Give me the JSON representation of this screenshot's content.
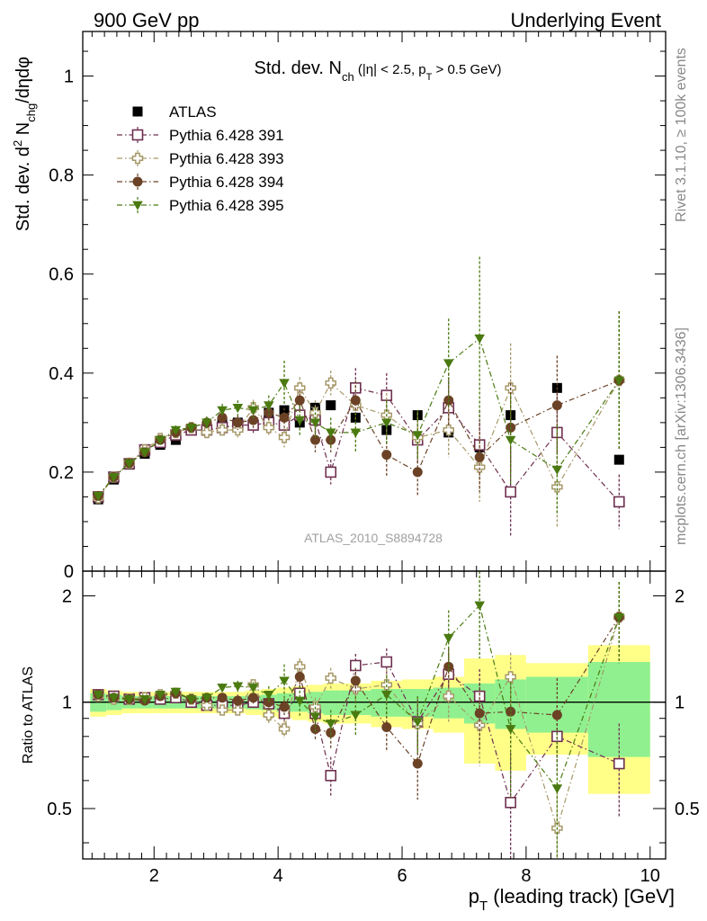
{
  "header": {
    "left": "900 GeV pp",
    "right": "Underlying Event"
  },
  "side_labels": {
    "rivet": "Rivet 3.1.10, ≥ 100k events",
    "mcplots": "mcplots.cern.ch [arXiv:1306.3436]"
  },
  "watermark": "ATLAS_2010_S8894728",
  "colors": {
    "ATLAS": "#000000",
    "pythia391": "#6e3050",
    "pythia393": "#a69868",
    "pythia394": "#6b4226",
    "pythia395": "#4a7a10",
    "band_inner": "#90f090",
    "band_outer": "#ffff88"
  },
  "chart_data": [
    {
      "type": "scatter",
      "panel": "main",
      "title": "Std. dev. N_ch (|η| < 2.5, p_T > 0.5 GeV)",
      "title_parts": {
        "base": "Std. dev. N",
        "sub": "ch",
        "cond1": " (|η| < 2.5, p",
        "sub2": "T",
        "cond2": " > 0.5 GeV)"
      },
      "ylabel": "Std. dev. d² N_chg/dηdφ",
      "ylabel_parts": {
        "a": "Std. dev. d",
        "sup": "2",
        "b": " N",
        "sub": "chg",
        "c": "/dηdφ"
      },
      "xlim": [
        0.85,
        10.25
      ],
      "ylim": [
        0,
        1.09
      ],
      "yticks": [
        0,
        0.2,
        0.4,
        0.6,
        0.8,
        1
      ],
      "ytick_labels": [
        "0",
        "0.2",
        "0.4",
        "0.6",
        "0.8",
        "1"
      ],
      "grid": false,
      "legend_position": "top-left",
      "x": [
        1.1,
        1.35,
        1.6,
        1.85,
        2.1,
        2.35,
        2.6,
        2.85,
        3.1,
        3.35,
        3.6,
        3.85,
        4.1,
        4.35,
        4.6,
        4.85,
        5.25,
        5.75,
        6.25,
        6.75,
        7.25,
        7.75,
        8.5,
        9.5
      ],
      "series": [
        {
          "name": "ATLAS",
          "key": "ATLAS",
          "marker": "filled-square",
          "values": [
            0.145,
            0.185,
            0.215,
            0.237,
            0.255,
            0.265,
            0.285,
            0.29,
            0.3,
            0.3,
            0.295,
            0.32,
            0.325,
            0.3,
            0.33,
            0.335,
            0.31,
            0.285,
            0.315,
            0.28,
            0.25,
            0.315,
            0.37,
            0.225
          ],
          "errors": [
            0,
            0,
            0,
            0,
            0,
            0,
            0,
            0,
            0,
            0,
            0,
            0,
            0,
            0,
            0,
            0,
            0,
            0,
            0,
            0,
            0,
            0,
            0,
            0
          ]
        },
        {
          "name": "Pythia 6.428 391",
          "key": "pythia391",
          "marker": "open-square",
          "values": [
            0.15,
            0.19,
            0.217,
            0.245,
            0.26,
            0.275,
            0.285,
            0.285,
            0.29,
            0.295,
            0.295,
            0.3,
            0.295,
            0.315,
            0.305,
            0.2,
            0.37,
            0.355,
            0.265,
            0.33,
            0.255,
            0.16,
            0.28,
            0.14
          ],
          "errors": [
            0.004,
            0.005,
            0.006,
            0.007,
            0.008,
            0.009,
            0.01,
            0.012,
            0.013,
            0.015,
            0.016,
            0.018,
            0.02,
            0.022,
            0.025,
            0.025,
            0.04,
            0.045,
            0.05,
            0.055,
            0.07,
            0.09,
            0.08,
            0.055
          ]
        },
        {
          "name": "Pythia 6.428 393",
          "key": "pythia393",
          "marker": "open-cross",
          "values": [
            0.148,
            0.19,
            0.218,
            0.245,
            0.268,
            0.28,
            0.29,
            0.28,
            0.285,
            0.285,
            0.33,
            0.29,
            0.27,
            0.37,
            0.32,
            0.38,
            0.335,
            0.315,
            0.27,
            0.285,
            0.21,
            0.37,
            0.17,
            0.385
          ],
          "errors": [
            0.004,
            0.005,
            0.006,
            0.007,
            0.008,
            0.009,
            0.01,
            0.012,
            0.013,
            0.015,
            0.016,
            0.018,
            0.02,
            0.022,
            0.025,
            0.025,
            0.04,
            0.045,
            0.05,
            0.055,
            0.07,
            0.09,
            0.08,
            0.14
          ]
        },
        {
          "name": "Pythia 6.428 394",
          "key": "pythia394",
          "marker": "filled-circle",
          "values": [
            0.152,
            0.19,
            0.218,
            0.24,
            0.265,
            0.28,
            0.29,
            0.3,
            0.31,
            0.3,
            0.305,
            0.32,
            0.31,
            0.345,
            0.265,
            0.265,
            0.345,
            0.235,
            0.2,
            0.345,
            0.23,
            0.29,
            0.335,
            0.385
          ],
          "errors": [
            0.004,
            0.005,
            0.006,
            0.007,
            0.008,
            0.009,
            0.01,
            0.012,
            0.013,
            0.015,
            0.016,
            0.018,
            0.02,
            0.022,
            0.025,
            0.025,
            0.04,
            0.045,
            0.05,
            0.055,
            0.07,
            0.09,
            0.1,
            0.14
          ]
        },
        {
          "name": "Pythia 6.428 395",
          "key": "pythia395",
          "marker": "filled-triangle-down",
          "values": [
            0.152,
            0.19,
            0.218,
            0.24,
            0.265,
            0.285,
            0.29,
            0.3,
            0.325,
            0.33,
            0.325,
            0.335,
            0.38,
            0.305,
            0.3,
            0.28,
            0.28,
            0.3,
            0.275,
            0.42,
            0.47,
            0.265,
            0.205,
            0.385
          ],
          "errors": [
            0.004,
            0.005,
            0.006,
            0.007,
            0.008,
            0.009,
            0.01,
            0.012,
            0.013,
            0.015,
            0.016,
            0.02,
            0.045,
            0.03,
            0.03,
            0.03,
            0.04,
            0.045,
            0.05,
            0.09,
            0.165,
            0.09,
            0.09,
            0.14
          ]
        }
      ]
    },
    {
      "type": "scatter",
      "panel": "ratio",
      "ylabel": "Ratio to ATLAS",
      "xlabel": "p_T (leading track) [GeV]",
      "xlabel_parts": {
        "a": "p",
        "sub": "T",
        "b": " (leading track) [GeV]"
      },
      "xlim": [
        0.85,
        10.25
      ],
      "ylim": [
        0.36,
        2.35
      ],
      "xticks": [
        2,
        4,
        6,
        8,
        10
      ],
      "xtick_labels": [
        "2",
        "4",
        "6",
        "8",
        "10"
      ],
      "yticks": [
        0.5,
        1,
        2
      ],
      "ytick_labels": [
        "0.5",
        "1",
        "2"
      ],
      "yscale": "log",
      "reference_line": 1,
      "uncertainty_bands": {
        "edges": [
          0.97,
          1.23,
          1.48,
          1.73,
          1.98,
          2.23,
          2.48,
          2.73,
          2.98,
          3.23,
          3.48,
          3.73,
          3.98,
          4.23,
          4.48,
          4.73,
          5.0,
          5.5,
          6.0,
          6.5,
          7.0,
          7.5,
          8.0,
          9.0,
          10.0
        ],
        "inner_half_width": [
          0.06,
          0.05,
          0.04,
          0.04,
          0.04,
          0.04,
          0.04,
          0.04,
          0.04,
          0.04,
          0.045,
          0.05,
          0.06,
          0.06,
          0.07,
          0.08,
          0.08,
          0.09,
          0.09,
          0.1,
          0.13,
          0.16,
          0.18,
          0.3
        ],
        "outer_half_width": [
          0.09,
          0.08,
          0.07,
          0.07,
          0.07,
          0.07,
          0.07,
          0.07,
          0.07,
          0.07,
          0.08,
          0.09,
          0.1,
          0.11,
          0.12,
          0.13,
          0.13,
          0.15,
          0.16,
          0.18,
          0.33,
          0.36,
          0.29,
          0.45
        ]
      },
      "x": [
        1.1,
        1.35,
        1.6,
        1.85,
        2.1,
        2.35,
        2.6,
        2.85,
        3.1,
        3.35,
        3.6,
        3.85,
        4.1,
        4.35,
        4.6,
        4.85,
        5.25,
        5.75,
        6.25,
        6.75,
        7.25,
        7.75,
        8.5,
        9.5
      ],
      "series": [
        {
          "name": "Pythia 6.428 391",
          "key": "pythia391",
          "marker": "open-square",
          "values": [
            1.05,
            1.04,
            1.02,
            1.03,
            1.02,
            1.03,
            1.0,
            0.98,
            0.98,
            0.98,
            1.0,
            0.99,
            0.93,
            1.06,
            0.93,
            0.62,
            1.27,
            1.3,
            0.88,
            1.2,
            1.04,
            0.52,
            0.8,
            0.67
          ],
          "errors": [
            0.02,
            0.02,
            0.02,
            0.02,
            0.02,
            0.03,
            0.03,
            0.03,
            0.03,
            0.04,
            0.04,
            0.05,
            0.05,
            0.06,
            0.06,
            0.08,
            0.1,
            0.12,
            0.14,
            0.16,
            0.2,
            0.2,
            0.18,
            0.2
          ]
        },
        {
          "name": "Pythia 6.428 393",
          "key": "pythia393",
          "marker": "open-cross",
          "values": [
            1.04,
            1.02,
            1.02,
            1.03,
            1.05,
            1.06,
            1.02,
            0.98,
            0.95,
            0.95,
            1.12,
            0.92,
            0.84,
            1.26,
            0.97,
            1.17,
            1.09,
            1.12,
            0.87,
            1.04,
            0.86,
            1.18,
            0.44,
            1.74
          ],
          "errors": [
            0.02,
            0.02,
            0.02,
            0.02,
            0.02,
            0.03,
            0.03,
            0.03,
            0.03,
            0.04,
            0.04,
            0.05,
            0.05,
            0.07,
            0.06,
            0.08,
            0.1,
            0.12,
            0.14,
            0.16,
            0.2,
            0.2,
            0.15,
            0.45
          ]
        },
        {
          "name": "Pythia 6.428 394",
          "key": "pythia394",
          "marker": "filled-circle",
          "values": [
            1.05,
            1.03,
            1.02,
            1.01,
            1.04,
            1.06,
            1.02,
            1.03,
            1.03,
            1.01,
            1.03,
            1.0,
            0.97,
            1.18,
            0.84,
            0.82,
            1.15,
            0.85,
            0.67,
            1.26,
            0.93,
            0.94,
            0.92,
            1.74
          ],
          "errors": [
            0.02,
            0.02,
            0.02,
            0.02,
            0.02,
            0.03,
            0.03,
            0.03,
            0.03,
            0.04,
            0.04,
            0.05,
            0.05,
            0.07,
            0.06,
            0.08,
            0.1,
            0.12,
            0.14,
            0.16,
            0.2,
            0.2,
            0.25,
            0.45
          ]
        },
        {
          "name": "Pythia 6.428 395",
          "key": "pythia395",
          "marker": "filled-triangle-down",
          "values": [
            1.05,
            1.03,
            1.02,
            1.02,
            1.05,
            1.07,
            1.02,
            1.03,
            1.1,
            1.11,
            1.1,
            1.05,
            1.15,
            1.01,
            0.91,
            0.87,
            0.92,
            1.05,
            0.88,
            1.52,
            1.88,
            0.84,
            0.57,
            1.74
          ],
          "errors": [
            0.02,
            0.02,
            0.02,
            0.02,
            0.02,
            0.03,
            0.03,
            0.03,
            0.03,
            0.04,
            0.04,
            0.06,
            0.13,
            0.1,
            0.09,
            0.08,
            0.12,
            0.14,
            0.16,
            0.3,
            0.55,
            0.3,
            0.25,
            0.45
          ]
        }
      ]
    }
  ]
}
